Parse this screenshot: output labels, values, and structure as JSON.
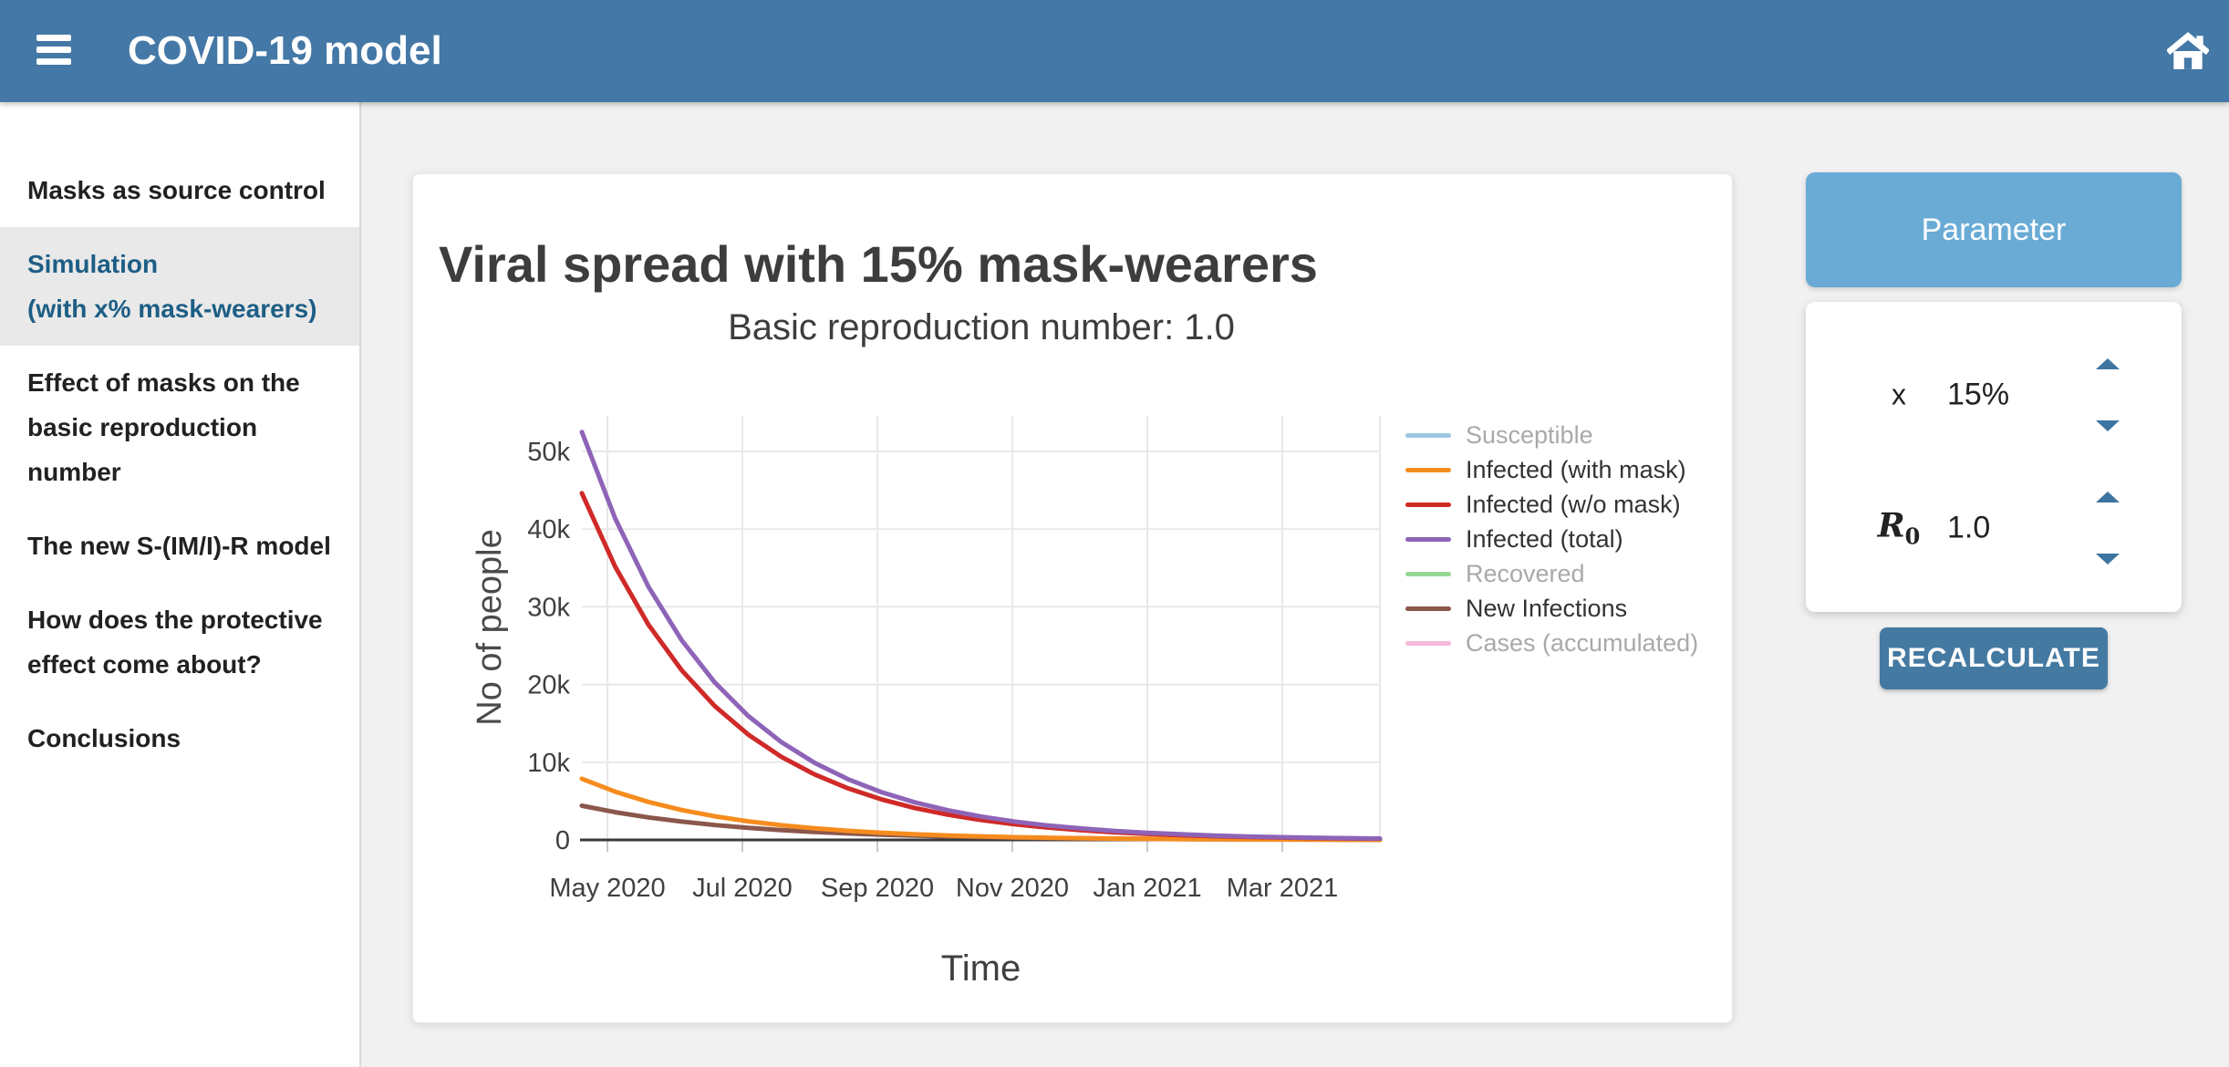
{
  "header": {
    "title": "COVID-19 model"
  },
  "sidebar": {
    "items": [
      {
        "lines": [
          "Masks as source control"
        ],
        "active": false
      },
      {
        "lines": [
          "Simulation",
          "(with x% mask-wearers)"
        ],
        "active": true
      },
      {
        "lines": [
          "Effect of masks on the",
          "basic reproduction number"
        ],
        "active": false
      },
      {
        "lines": [
          "The new S-(IM/I)-R model"
        ],
        "active": false
      },
      {
        "lines": [
          "How does the protective",
          "effect come about?"
        ],
        "active": false
      },
      {
        "lines": [
          "Conclusions"
        ],
        "active": false
      }
    ]
  },
  "chart_data": {
    "type": "line",
    "title": "Viral spread with 15% mask-wearers",
    "subtitle": "Basic reproduction number: 1.0",
    "xlabel": "Time",
    "ylabel": "No of people",
    "ylim": [
      0,
      55000
    ],
    "grid": true,
    "legend_position": "right",
    "x_ticks": [
      "May 2020",
      "Jul 2020",
      "Sep 2020",
      "Nov 2020",
      "Jan 2021",
      "Mar 2021"
    ],
    "y_ticks": [
      {
        "label": "0",
        "value": 0
      },
      {
        "label": "10k",
        "value": 10000
      },
      {
        "label": "20k",
        "value": 20000
      },
      {
        "label": "30k",
        "value": 30000
      },
      {
        "label": "40k",
        "value": 40000
      },
      {
        "label": "50k",
        "value": 50000
      }
    ],
    "x_months": [
      0,
      0.5,
      1,
      1.5,
      2,
      2.5,
      3,
      3.5,
      4,
      4.5,
      5,
      5.5,
      6,
      6.5,
      7,
      7.5,
      8,
      8.5,
      9,
      9.5,
      10,
      10.5,
      11,
      11.5,
      12
    ],
    "series": [
      {
        "name": "Susceptible",
        "color": "#9dc7e0",
        "visible": false,
        "values": null
      },
      {
        "name": "Infected (with mask)",
        "color": "#f68c1e",
        "visible": true,
        "values": [
          7875,
          6206,
          4891,
          3855,
          3038,
          2394,
          1887,
          1487,
          1172,
          924,
          728,
          574,
          452,
          357,
          281,
          222,
          175,
          138,
          108,
          85,
          68,
          53,
          42,
          33,
          26
        ]
      },
      {
        "name": "Infected (w/o mask)",
        "color": "#cf2a28",
        "visible": true,
        "values": [
          44625,
          35170,
          27717,
          21844,
          17215,
          13568,
          10693,
          8427,
          6641,
          5234,
          4125,
          3251,
          2562,
          2019,
          1591,
          1254,
          988,
          779,
          614,
          484,
          381,
          301,
          237,
          187,
          147
        ]
      },
      {
        "name": "Infected (total)",
        "color": "#8e64b8",
        "visible": true,
        "values": [
          52500,
          41376,
          32608,
          25699,
          20253,
          15962,
          12580,
          9914,
          7813,
          6158,
          4853,
          3825,
          3014,
          2376,
          1872,
          1476,
          1163,
          917,
          722,
          569,
          449,
          354,
          279,
          220,
          173
        ]
      },
      {
        "name": "Recovered",
        "color": "#97d694",
        "visible": false,
        "values": null
      },
      {
        "name": "New Infections",
        "color": "#8a574c",
        "visible": true,
        "values": [
          4400,
          3573,
          2901,
          2356,
          1913,
          1553,
          1261,
          1024,
          832,
          675,
          548,
          445,
          362,
          294,
          238,
          194,
          157,
          128,
          104,
          84,
          68,
          56,
          45,
          37,
          30
        ]
      },
      {
        "name": "Cases (accumulated)",
        "color": "#f5b9d8",
        "visible": false,
        "values": null
      }
    ]
  },
  "params": {
    "header": "Parameter",
    "rows": [
      {
        "label": "x",
        "sub": "",
        "value": "15%"
      },
      {
        "label": "R",
        "sub": "0",
        "value": "1.0"
      }
    ],
    "recalculate_label": "RECALCULATE"
  }
}
